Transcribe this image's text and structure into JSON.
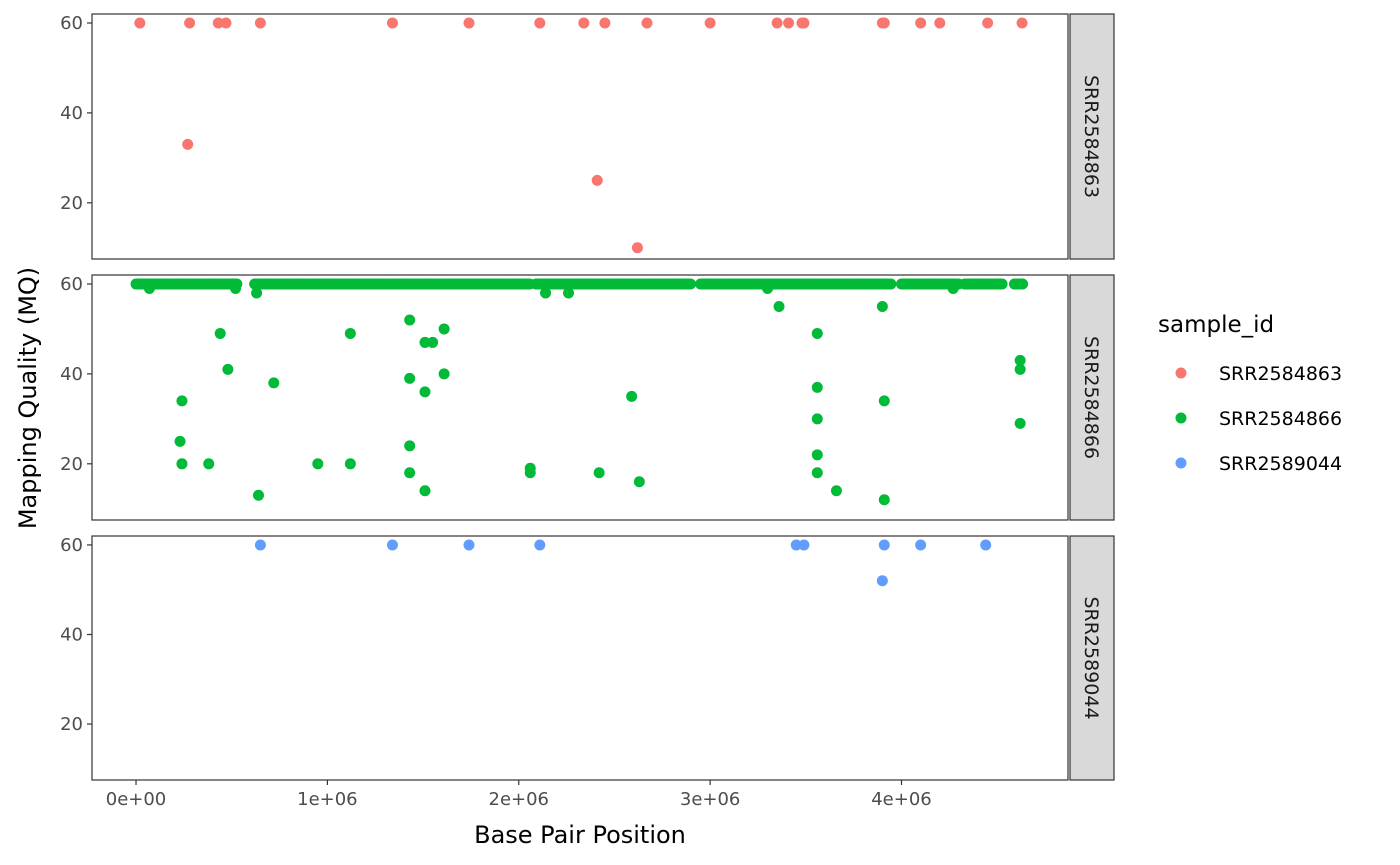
{
  "chart_data": {
    "type": "scatter",
    "xlabel": "Base Pair Position",
    "ylabel": "Mapping Quality (MQ)",
    "xlim": [
      -230000,
      4870000
    ],
    "ylim": [
      7.5,
      62
    ],
    "x_ticks": [
      0,
      1000000,
      2000000,
      3000000,
      4000000
    ],
    "x_tick_labels": [
      "0e+00",
      "1e+06",
      "2e+06",
      "3e+06",
      "4e+06"
    ],
    "y_ticks": [
      20,
      40,
      60
    ],
    "y_tick_labels": [
      "20",
      "40",
      "60"
    ],
    "legend_title": "sample_id",
    "legend_position": "right",
    "grid": false,
    "facet_layout": "rows",
    "series": [
      {
        "name": "SRR2584863",
        "color": "#F8766D",
        "facet_label": "SRR2584863",
        "points": [
          [
            20000,
            60
          ],
          [
            280000,
            60
          ],
          [
            430000,
            60
          ],
          [
            470000,
            60
          ],
          [
            650000,
            60
          ],
          [
            1340000,
            60
          ],
          [
            1740000,
            60
          ],
          [
            2110000,
            60
          ],
          [
            2340000,
            60
          ],
          [
            2450000,
            60
          ],
          [
            2670000,
            60
          ],
          [
            3000000,
            60
          ],
          [
            3350000,
            60
          ],
          [
            3410000,
            60
          ],
          [
            3480000,
            60
          ],
          [
            3490000,
            60
          ],
          [
            3900000,
            60
          ],
          [
            3910000,
            60
          ],
          [
            4100000,
            60
          ],
          [
            4200000,
            60
          ],
          [
            4450000,
            60
          ],
          [
            4630000,
            60
          ],
          [
            270000,
            33
          ],
          [
            2410000,
            25
          ],
          [
            2620000,
            10
          ]
        ]
      },
      {
        "name": "SRR2584866",
        "color": "#00BA38",
        "facet_label": "SRR2584866",
        "dense_runs_y60": [
          [
            0,
            530000
          ],
          [
            620000,
            2060000
          ],
          [
            2090000,
            2900000
          ],
          [
            2950000,
            3950000
          ],
          [
            4000000,
            4300000
          ],
          [
            4330000,
            4530000
          ],
          [
            4590000,
            4640000
          ]
        ],
        "points": [
          [
            70000,
            59
          ],
          [
            520000,
            59
          ],
          [
            630000,
            58
          ],
          [
            2140000,
            58
          ],
          [
            2260000,
            58
          ],
          [
            3300000,
            59
          ],
          [
            4270000,
            59
          ],
          [
            440000,
            49
          ],
          [
            480000,
            41
          ],
          [
            240000,
            34
          ],
          [
            230000,
            25
          ],
          [
            240000,
            20
          ],
          [
            380000,
            20
          ],
          [
            640000,
            13
          ],
          [
            720000,
            38
          ],
          [
            950000,
            20
          ],
          [
            1120000,
            49
          ],
          [
            1120000,
            20
          ],
          [
            1430000,
            52
          ],
          [
            1430000,
            39
          ],
          [
            1430000,
            24
          ],
          [
            1430000,
            18
          ],
          [
            1510000,
            47
          ],
          [
            1550000,
            47
          ],
          [
            1510000,
            36
          ],
          [
            1510000,
            14
          ],
          [
            1610000,
            50
          ],
          [
            1610000,
            40
          ],
          [
            2060000,
            19
          ],
          [
            2060000,
            18
          ],
          [
            2420000,
            18
          ],
          [
            2590000,
            35
          ],
          [
            2630000,
            16
          ],
          [
            3360000,
            55
          ],
          [
            3560000,
            49
          ],
          [
            3560000,
            37
          ],
          [
            3560000,
            30
          ],
          [
            3560000,
            22
          ],
          [
            3560000,
            18
          ],
          [
            3660000,
            14
          ],
          [
            3900000,
            55
          ],
          [
            3910000,
            34
          ],
          [
            3910000,
            12
          ],
          [
            4620000,
            43
          ],
          [
            4620000,
            41
          ],
          [
            4620000,
            29
          ]
        ]
      },
      {
        "name": "SRR2589044",
        "color": "#619CFF",
        "facet_label": "SRR2589044",
        "points": [
          [
            650000,
            60
          ],
          [
            1340000,
            60
          ],
          [
            1740000,
            60
          ],
          [
            2110000,
            60
          ],
          [
            3450000,
            60
          ],
          [
            3490000,
            60
          ],
          [
            3910000,
            60
          ],
          [
            4100000,
            60
          ],
          [
            4440000,
            60
          ],
          [
            3900000,
            52
          ]
        ]
      }
    ]
  }
}
